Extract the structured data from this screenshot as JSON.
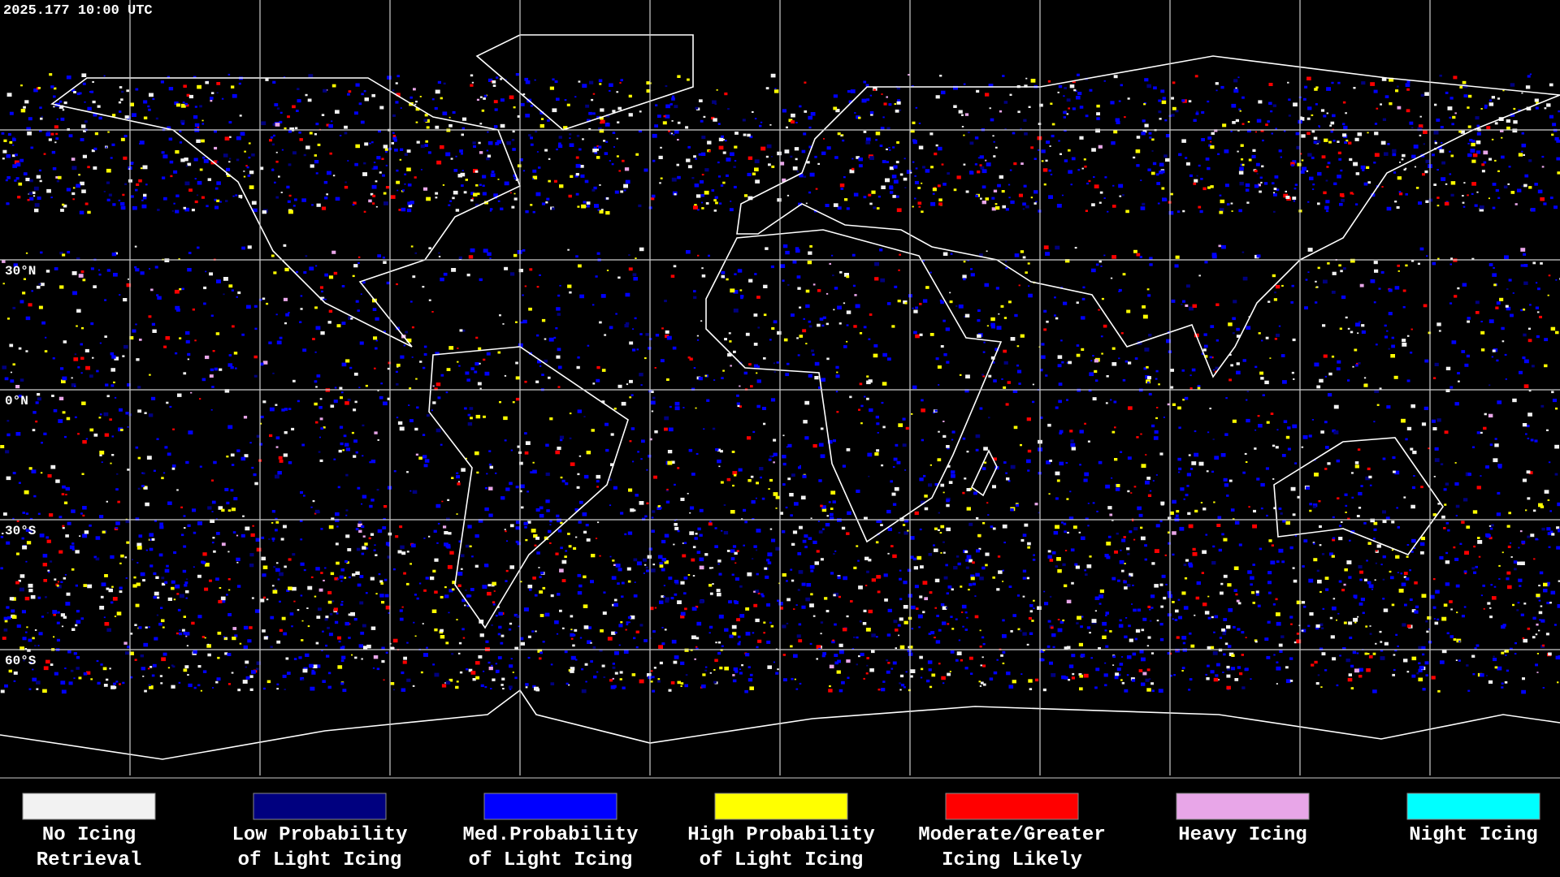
{
  "header": {
    "timestamp": "2025.177 10:00 UTC"
  },
  "map": {
    "lat_labels": [
      "30°N",
      "0°N",
      "30°S",
      "60°S"
    ]
  },
  "legend": {
    "items": [
      {
        "label": [
          "No Icing",
          "Retrieval"
        ],
        "color": "#f2f2f2"
      },
      {
        "label": [
          "Low Probability",
          "of Light Icing"
        ],
        "color": "#00007f"
      },
      {
        "label": [
          "Med.Probability",
          "of Light Icing"
        ],
        "color": "#0000ff"
      },
      {
        "label": [
          "High Probability",
          "of Light Icing"
        ],
        "color": "#ffff00"
      },
      {
        "label": [
          "Moderate/Greater",
          "Icing Likely"
        ],
        "color": "#ff0000"
      },
      {
        "label": [
          "Heavy Icing"
        ],
        "color": "#e8a6e8"
      },
      {
        "label": [
          "Night Icing"
        ],
        "color": "#00ffff"
      }
    ]
  }
}
